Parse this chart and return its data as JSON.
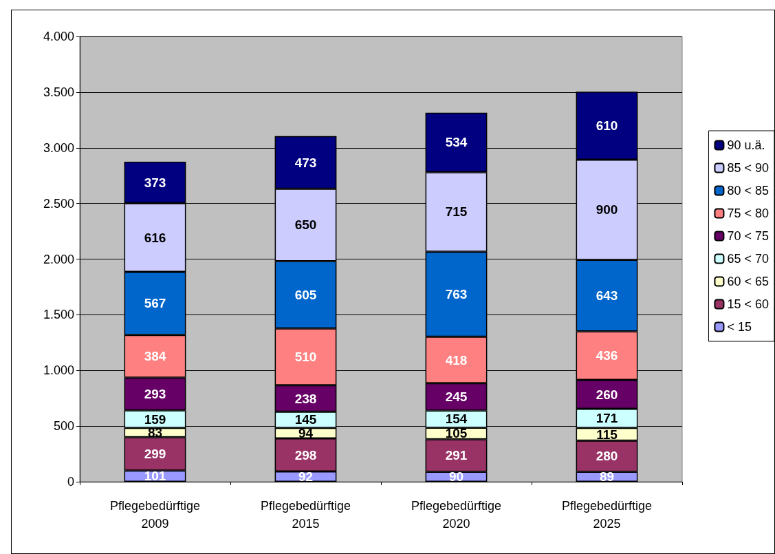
{
  "chart_data": {
    "type": "bar",
    "stacked": true,
    "categories": [
      "Pflegebedürftige\n2009",
      "Pflegebedürftige\n2015",
      "Pflegebedürftige\n2020",
      "Pflegebedürftige\n2025"
    ],
    "series": [
      {
        "name": "< 15",
        "color": "#9999ff",
        "values": [
          101,
          92,
          90,
          89
        ]
      },
      {
        "name": "15 < 60",
        "color": "#993366",
        "values": [
          299,
          298,
          291,
          280
        ]
      },
      {
        "name": "60 < 65",
        "color": "#ffffcc",
        "values": [
          83,
          94,
          105,
          115
        ]
      },
      {
        "name": "65 < 70",
        "color": "#ccffff",
        "values": [
          159,
          145,
          154,
          171
        ]
      },
      {
        "name": "70 < 75",
        "color": "#660066",
        "values": [
          293,
          238,
          245,
          260
        ]
      },
      {
        "name": "75 < 80",
        "color": "#ff8080",
        "values": [
          384,
          510,
          418,
          436
        ]
      },
      {
        "name": "80 < 85",
        "color": "#0066cc",
        "values": [
          567,
          605,
          763,
          643
        ]
      },
      {
        "name": "85 < 90",
        "color": "#ccccff",
        "values": [
          616,
          650,
          715,
          900
        ]
      },
      {
        "name": "90 u.ä.",
        "color": "#000080",
        "values": [
          373,
          473,
          534,
          610
        ]
      }
    ],
    "ylim": [
      0,
      4000
    ],
    "yticks": [
      0,
      500,
      {
        "value": 1000,
        "label": "1.000"
      },
      {
        "value": 1500,
        "label": "1.500"
      },
      {
        "value": 2000,
        "label": "2.000"
      },
      {
        "value": 2500,
        "label": "2.500"
      },
      {
        "value": 3000,
        "label": "3.000"
      },
      {
        "value": 3500,
        "label": "3.500"
      },
      {
        "value": 4000,
        "label": "4.000"
      }
    ],
    "grid": "y",
    "legend": "right",
    "data_labels": true
  }
}
